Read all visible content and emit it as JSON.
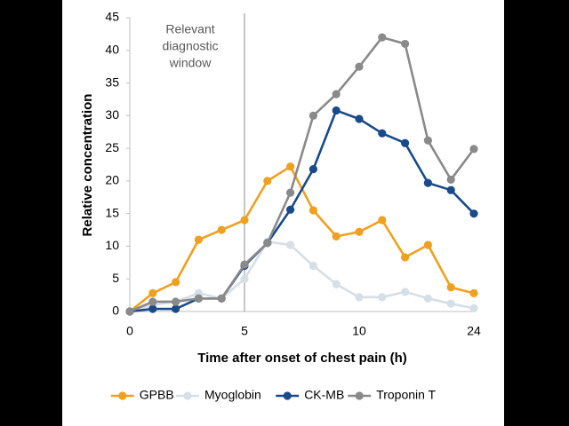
{
  "chart_data": {
    "type": "line",
    "x_label": "Time after onset of chest pain (h)",
    "y_label": "Relative concentration",
    "annotation": [
      "Relevant",
      "diagnostic",
      "window"
    ],
    "vline": 5,
    "categories": [
      "0",
      null,
      null,
      null,
      null,
      "5",
      null,
      null,
      null,
      null,
      "10",
      null,
      null,
      null,
      null,
      "24"
    ],
    "ylim": [
      0,
      45
    ],
    "yticks": [
      0,
      5,
      10,
      15,
      20,
      25,
      30,
      35,
      40,
      45
    ],
    "grid": false,
    "legend": "bottom",
    "series": [
      {
        "name": "GPBB",
        "color": "#f0a020",
        "values": [
          0,
          2.8,
          4.5,
          11,
          12.5,
          14,
          20,
          22.2,
          15.5,
          11.5,
          12.2,
          14,
          8.3,
          10.2,
          3.7,
          2.8
        ]
      },
      {
        "name": "Myoglobin",
        "color": "#d6dee6",
        "values": [
          0,
          1,
          1.5,
          2.8,
          2,
          5,
          10.7,
          10.2,
          7,
          4.2,
          2.2,
          2.2,
          3,
          2,
          1.2,
          0.5
        ]
      },
      {
        "name": "CK-MB",
        "color": "#1a4a8a",
        "values": [
          0,
          0.4,
          0.4,
          2,
          2,
          7,
          10.5,
          15.6,
          21.8,
          30.8,
          29.5,
          27.3,
          25.8,
          19.7,
          18.6,
          15
        ]
      },
      {
        "name": "Troponin T",
        "color": "#8a8a8a",
        "values": [
          0,
          1.5,
          1.5,
          2,
          2,
          7.2,
          10.5,
          18.2,
          30,
          33.3,
          37.5,
          42,
          41,
          26.2,
          20.2,
          24.9
        ]
      }
    ]
  }
}
